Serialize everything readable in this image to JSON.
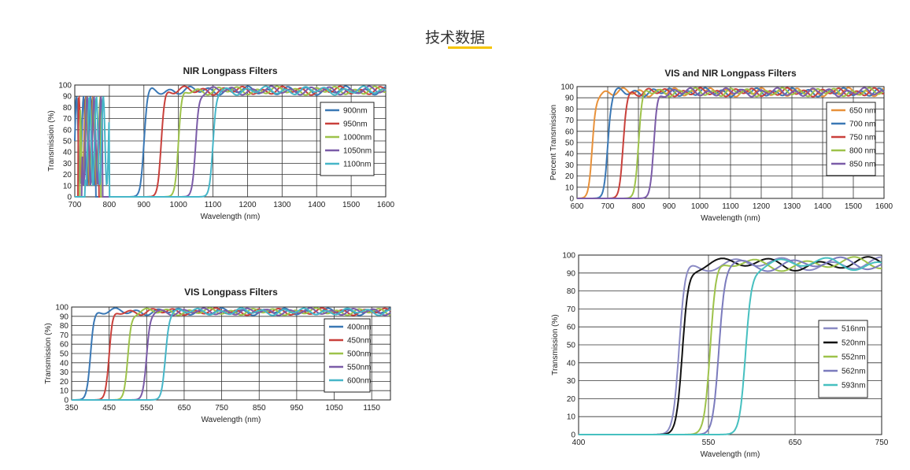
{
  "header": {
    "title": "技术数据"
  },
  "chart_data": [
    {
      "type": "line",
      "title": "NIR Longpass Filters",
      "xlabel": "Wavelength (nm)",
      "ylabel": "Transmission (%)",
      "xlim": [
        700,
        1600
      ],
      "ylim": [
        0,
        100
      ],
      "xticks": [
        "700",
        "800",
        "900",
        "1000",
        "1100",
        "1200",
        "1300",
        "1400",
        "1500",
        "1600"
      ],
      "yticks": [
        "0",
        "10",
        "20",
        "30",
        "40",
        "50",
        "60",
        "70",
        "80",
        "90",
        "100"
      ],
      "legend_position": "right",
      "series": [
        {
          "name": "900nm",
          "color": "#3a78b5",
          "cutoff": 900,
          "osc_start": 700,
          "osc_end": 760
        },
        {
          "name": "950nm",
          "color": "#c9403b",
          "cutoff": 950,
          "osc_start": 710,
          "osc_end": 770
        },
        {
          "name": "1000nm",
          "color": "#9dc24a",
          "cutoff": 1000,
          "osc_start": 715,
          "osc_end": 775
        },
        {
          "name": "1050nm",
          "color": "#7b5ca8",
          "cutoff": 1050,
          "osc_start": 720,
          "osc_end": 780
        },
        {
          "name": "1100nm",
          "color": "#46b6c8",
          "cutoff": 1100,
          "osc_start": 730,
          "osc_end": 800
        }
      ]
    },
    {
      "type": "line",
      "title": "VIS and NIR Longpass Filters",
      "xlabel": "Wavelength (nm)",
      "ylabel": "Percent Transmission",
      "xlim": [
        600,
        1600
      ],
      "ylim": [
        0,
        100
      ],
      "xticks": [
        "600",
        "700",
        "800",
        "900",
        "1000",
        "1100",
        "1200",
        "1300",
        "1400",
        "1500",
        "1600"
      ],
      "yticks": [
        "0",
        "10",
        "20",
        "30",
        "40",
        "50",
        "60",
        "70",
        "80",
        "90",
        "100"
      ],
      "legend_position": "right",
      "series": [
        {
          "name": "650 nm",
          "color": "#e8913a",
          "cutoff": 650
        },
        {
          "name": "700 nm",
          "color": "#3a78b5",
          "cutoff": 700
        },
        {
          "name": "750 nm",
          "color": "#c9403b",
          "cutoff": 750
        },
        {
          "name": "800 nm",
          "color": "#9dc24a",
          "cutoff": 800
        },
        {
          "name": "850 nm",
          "color": "#7b5ca8",
          "cutoff": 850
        }
      ]
    },
    {
      "type": "line",
      "title": "VIS Longpass Filters",
      "xlabel": "Wavelength (nm)",
      "ylabel": "Transmission (%)",
      "xlim": [
        350,
        1200
      ],
      "ylim": [
        0,
        100
      ],
      "xticks": [
        "350",
        "450",
        "550",
        "650",
        "750",
        "850",
        "950",
        "1050",
        "1150"
      ],
      "xtick_values": [
        350,
        450,
        550,
        650,
        750,
        850,
        950,
        1050,
        1150
      ],
      "yticks": [
        "0",
        "10",
        "20",
        "30",
        "40",
        "50",
        "60",
        "70",
        "80",
        "90",
        "100"
      ],
      "legend_position": "right",
      "series": [
        {
          "name": "400nm",
          "color": "#3a78b5",
          "cutoff": 400
        },
        {
          "name": "450nm",
          "color": "#c9403b",
          "cutoff": 450
        },
        {
          "name": "500nm",
          "color": "#9dc24a",
          "cutoff": 500
        },
        {
          "name": "550nm",
          "color": "#7b5ca8",
          "cutoff": 550
        },
        {
          "name": "600nm",
          "color": "#46b6c8",
          "cutoff": 600
        }
      ]
    },
    {
      "type": "line",
      "title": "",
      "xlabel": "Wavelength (nm)",
      "ylabel": "Transmission (%)",
      "xlim": [
        400,
        750
      ],
      "ylim": [
        0,
        100
      ],
      "xticks": [
        "400",
        "550",
        "650",
        "750"
      ],
      "xtick_values": [
        400,
        550,
        650,
        750
      ],
      "yticks": [
        "0",
        "10",
        "20",
        "30",
        "40",
        "50",
        "60",
        "70",
        "80",
        "90",
        "100"
      ],
      "legend_position": "right",
      "series": [
        {
          "name": "516nm",
          "color": "#8a8ac4",
          "cutoff": 516
        },
        {
          "name": "520nm",
          "color": "#111111",
          "cutoff": 520
        },
        {
          "name": "552nm",
          "color": "#9dc24a",
          "cutoff": 552
        },
        {
          "name": "562nm",
          "color": "#7b7bbd",
          "cutoff": 562
        },
        {
          "name": "593nm",
          "color": "#46c0c0",
          "cutoff": 593
        }
      ]
    }
  ]
}
